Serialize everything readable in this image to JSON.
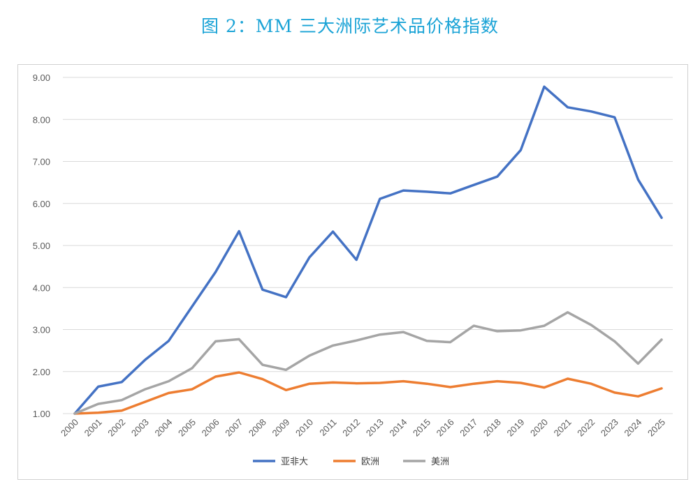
{
  "title": "图 2：MM 三大洲际艺术品价格指数",
  "chart_data": {
    "type": "line",
    "title": "图 2：MM 三大洲际艺术品价格指数",
    "xlabel": "",
    "ylabel": "",
    "ylim": [
      1.0,
      9.0
    ],
    "yticks": [
      "1.00",
      "2.00",
      "3.00",
      "4.00",
      "5.00",
      "6.00",
      "7.00",
      "8.00",
      "9.00"
    ],
    "x": [
      "2000",
      "2001",
      "2002",
      "2003",
      "2004",
      "2005",
      "2006",
      "2007",
      "2008",
      "2009",
      "2010",
      "2011",
      "2012",
      "2013",
      "2014",
      "2015",
      "2016",
      "2017",
      "2018",
      "2019",
      "2020",
      "2021",
      "2022",
      "2023",
      "2024",
      "2025"
    ],
    "grid": true,
    "legend_position": "bottom",
    "series": [
      {
        "name": "亚非大",
        "color": "#4472c4",
        "values": [
          1.0,
          1.64,
          1.75,
          2.28,
          2.73,
          3.55,
          4.37,
          5.34,
          3.95,
          3.77,
          4.72,
          5.33,
          4.66,
          6.11,
          6.31,
          6.28,
          6.24,
          6.44,
          6.64,
          7.27,
          8.78,
          8.29,
          8.19,
          8.05,
          6.57,
          5.66
        ]
      },
      {
        "name": "欧洲",
        "color": "#ed7d31",
        "values": [
          1.0,
          1.02,
          1.07,
          1.28,
          1.49,
          1.58,
          1.88,
          1.98,
          1.82,
          1.56,
          1.71,
          1.74,
          1.72,
          1.73,
          1.77,
          1.71,
          1.63,
          1.71,
          1.77,
          1.73,
          1.62,
          1.83,
          1.71,
          1.5,
          1.41,
          1.6
        ]
      },
      {
        "name": "美洲",
        "color": "#a5a5a5",
        "values": [
          1.0,
          1.23,
          1.32,
          1.58,
          1.77,
          2.08,
          2.72,
          2.77,
          2.16,
          2.04,
          2.38,
          2.62,
          2.74,
          2.88,
          2.94,
          2.73,
          2.7,
          3.09,
          2.96,
          2.98,
          3.09,
          3.41,
          3.11,
          2.72,
          2.19,
          2.76
        ]
      }
    ]
  }
}
